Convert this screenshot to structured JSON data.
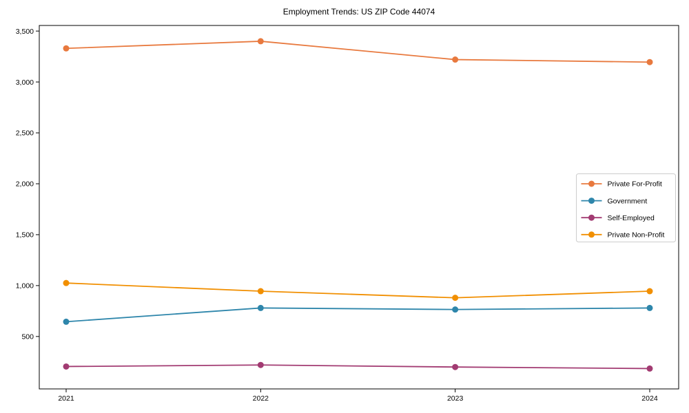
{
  "title": "Employment Trends: US ZIP Code 44074",
  "chart_data": {
    "type": "line",
    "title": "Employment Trends: US ZIP Code 44074",
    "xlabel": "",
    "ylabel": "",
    "x": [
      2021,
      2022,
      2023,
      2024
    ],
    "xticks": [
      "2021",
      "2022",
      "2023",
      "2024"
    ],
    "ytick_values": [
      500,
      1000,
      1500,
      2000,
      2500,
      3000,
      3500
    ],
    "yticks": [
      "500",
      "1,000",
      "1,500",
      "2,000",
      "2,500",
      "3,000",
      "3,500"
    ],
    "ylim": [
      -15,
      3555
    ],
    "grid": false,
    "marker": "circle",
    "legend_position": "center right",
    "series": [
      {
        "name": "Private For-Profit",
        "color": "#E8793E",
        "values": [
          3330,
          3400,
          3220,
          3195
        ]
      },
      {
        "name": "Government",
        "color": "#2E86AB",
        "values": [
          645,
          780,
          765,
          780
        ]
      },
      {
        "name": "Self-Employed",
        "color": "#A23B72",
        "values": [
          205,
          220,
          200,
          185
        ]
      },
      {
        "name": "Private Non-Profit",
        "color": "#F18F01",
        "values": [
          1025,
          945,
          880,
          945
        ]
      }
    ]
  },
  "colors": {
    "background": "#ffffff",
    "axis": "#000000",
    "legend_border": "#cccccc"
  }
}
